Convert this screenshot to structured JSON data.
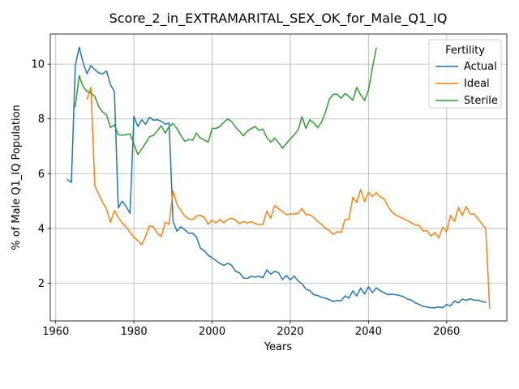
{
  "chart_data": {
    "type": "line",
    "title": "Score_2_in_EXTRAMARITAL_SEX_OK_for_Male_Q1_IQ",
    "xlabel": "Years",
    "ylabel": "% of Male Q1_IQ Population",
    "xlim": [
      1958.6,
      2075.4
    ],
    "ylim": [
      0.62,
      11.1
    ],
    "xticks": [
      1960,
      1980,
      2000,
      2020,
      2040,
      2060
    ],
    "yticks": [
      2,
      4,
      6,
      8,
      10
    ],
    "grid": true,
    "legend": {
      "title": "Fertility",
      "placement": "top-right"
    },
    "series": [
      {
        "name": "Actual",
        "color": "#1f77b4",
        "points": [
          [
            1963,
            5.78
          ],
          [
            1964,
            5.68
          ],
          [
            1965,
            9.95
          ],
          [
            1966,
            10.62
          ],
          [
            1967,
            10.05
          ],
          [
            1968,
            9.65
          ],
          [
            1969,
            9.95
          ],
          [
            1970,
            9.8
          ],
          [
            1971,
            9.68
          ],
          [
            1972,
            9.65
          ],
          [
            1973,
            9.75
          ],
          [
            1974,
            9.25
          ],
          [
            1975,
            9.0
          ],
          [
            1976,
            4.75
          ],
          [
            1977,
            5.0
          ],
          [
            1978,
            4.8
          ],
          [
            1979,
            4.55
          ],
          [
            1980,
            8.1
          ],
          [
            1981,
            7.72
          ],
          [
            1982,
            7.97
          ],
          [
            1983,
            7.8
          ],
          [
            1984,
            8.06
          ],
          [
            1985,
            7.95
          ],
          [
            1986,
            7.97
          ],
          [
            1987,
            7.92
          ],
          [
            1988,
            7.8
          ],
          [
            1989,
            7.85
          ],
          [
            1990,
            4.27
          ],
          [
            1991,
            3.9
          ],
          [
            1992,
            4.06
          ],
          [
            1993,
            3.95
          ],
          [
            1994,
            3.82
          ],
          [
            1995,
            3.83
          ],
          [
            1996,
            3.68
          ],
          [
            1997,
            3.28
          ],
          [
            1998,
            3.18
          ],
          [
            1999,
            3.02
          ],
          [
            2000,
            2.93
          ],
          [
            2001,
            2.82
          ],
          [
            2002,
            2.72
          ],
          [
            2003,
            2.65
          ],
          [
            2004,
            2.73
          ],
          [
            2005,
            2.65
          ],
          [
            2006,
            2.43
          ],
          [
            2007,
            2.38
          ],
          [
            2008,
            2.19
          ],
          [
            2009,
            2.17
          ],
          [
            2010,
            2.25
          ],
          [
            2011,
            2.22
          ],
          [
            2012,
            2.25
          ],
          [
            2013,
            2.2
          ],
          [
            2014,
            2.48
          ],
          [
            2015,
            2.33
          ],
          [
            2016,
            2.43
          ],
          [
            2017,
            2.38
          ],
          [
            2018,
            2.13
          ],
          [
            2019,
            2.28
          ],
          [
            2020,
            2.12
          ],
          [
            2021,
            2.26
          ],
          [
            2022,
            2.08
          ],
          [
            2023,
            1.98
          ],
          [
            2024,
            1.78
          ],
          [
            2025,
            1.73
          ],
          [
            2026,
            1.58
          ],
          [
            2027,
            1.55
          ],
          [
            2028,
            1.48
          ],
          [
            2029,
            1.45
          ],
          [
            2030,
            1.4
          ],
          [
            2031,
            1.33
          ],
          [
            2032,
            1.37
          ],
          [
            2033,
            1.35
          ],
          [
            2034,
            1.53
          ],
          [
            2035,
            1.45
          ],
          [
            2036,
            1.72
          ],
          [
            2037,
            1.53
          ],
          [
            2038,
            1.82
          ],
          [
            2039,
            1.6
          ],
          [
            2040,
            1.87
          ],
          [
            2041,
            1.65
          ],
          [
            2042,
            1.83
          ],
          [
            2043,
            1.72
          ],
          [
            2044,
            1.65
          ],
          [
            2045,
            1.58
          ],
          [
            2046,
            1.6
          ],
          [
            2047,
            1.58
          ],
          [
            2048,
            1.55
          ],
          [
            2049,
            1.5
          ],
          [
            2050,
            1.42
          ],
          [
            2051,
            1.38
          ],
          [
            2052,
            1.28
          ],
          [
            2053,
            1.22
          ],
          [
            2054,
            1.15
          ],
          [
            2055,
            1.13
          ],
          [
            2056,
            1.1
          ],
          [
            2057,
            1.1
          ],
          [
            2058,
            1.13
          ],
          [
            2059,
            1.1
          ],
          [
            2060,
            1.22
          ],
          [
            2061,
            1.17
          ],
          [
            2062,
            1.35
          ],
          [
            2063,
            1.28
          ],
          [
            2064,
            1.42
          ],
          [
            2065,
            1.37
          ],
          [
            2066,
            1.43
          ],
          [
            2067,
            1.38
          ],
          [
            2068,
            1.38
          ],
          [
            2069,
            1.33
          ],
          [
            2070,
            1.3
          ]
        ]
      },
      {
        "name": "Ideal",
        "color": "#ff7f0e",
        "points": [
          [
            1968,
            8.72
          ],
          [
            1969,
            9.15
          ],
          [
            1970,
            5.55
          ],
          [
            1971,
            5.25
          ],
          [
            1972,
            4.95
          ],
          [
            1973,
            4.7
          ],
          [
            1974,
            4.22
          ],
          [
            1975,
            4.65
          ],
          [
            1976,
            4.4
          ],
          [
            1977,
            4.2
          ],
          [
            1978,
            4.05
          ],
          [
            1979,
            3.85
          ],
          [
            1980,
            3.68
          ],
          [
            1981,
            3.55
          ],
          [
            1982,
            3.4
          ],
          [
            1983,
            3.72
          ],
          [
            1984,
            4.1
          ],
          [
            1985,
            4.05
          ],
          [
            1986,
            3.82
          ],
          [
            1987,
            3.7
          ],
          [
            1988,
            4.22
          ],
          [
            1989,
            4.15
          ],
          [
            1990,
            5.37
          ],
          [
            1991,
            4.88
          ],
          [
            1992,
            4.65
          ],
          [
            1993,
            4.45
          ],
          [
            1994,
            4.35
          ],
          [
            1995,
            4.32
          ],
          [
            1996,
            4.45
          ],
          [
            1997,
            4.48
          ],
          [
            1998,
            4.4
          ],
          [
            1999,
            4.15
          ],
          [
            2000,
            4.3
          ],
          [
            2001,
            4.2
          ],
          [
            2002,
            4.33
          ],
          [
            2003,
            4.2
          ],
          [
            2004,
            4.33
          ],
          [
            2005,
            4.37
          ],
          [
            2006,
            4.3
          ],
          [
            2007,
            4.17
          ],
          [
            2008,
            4.25
          ],
          [
            2009,
            4.2
          ],
          [
            2010,
            4.25
          ],
          [
            2011,
            4.18
          ],
          [
            2012,
            4.13
          ],
          [
            2013,
            4.15
          ],
          [
            2014,
            4.63
          ],
          [
            2015,
            4.37
          ],
          [
            2016,
            4.83
          ],
          [
            2017,
            4.72
          ],
          [
            2018,
            4.62
          ],
          [
            2019,
            4.5
          ],
          [
            2020,
            4.53
          ],
          [
            2021,
            4.52
          ],
          [
            2022,
            4.55
          ],
          [
            2023,
            4.73
          ],
          [
            2024,
            4.5
          ],
          [
            2025,
            4.5
          ],
          [
            2026,
            4.4
          ],
          [
            2027,
            4.25
          ],
          [
            2028,
            4.15
          ],
          [
            2029,
            4.0
          ],
          [
            2030,
            3.92
          ],
          [
            2031,
            3.78
          ],
          [
            2032,
            3.88
          ],
          [
            2033,
            3.85
          ],
          [
            2034,
            4.32
          ],
          [
            2035,
            4.33
          ],
          [
            2036,
            5.13
          ],
          [
            2037,
            4.95
          ],
          [
            2038,
            5.42
          ],
          [
            2039,
            4.98
          ],
          [
            2040,
            5.32
          ],
          [
            2041,
            5.17
          ],
          [
            2042,
            5.3
          ],
          [
            2043,
            5.15
          ],
          [
            2044,
            5.08
          ],
          [
            2045,
            4.8
          ],
          [
            2046,
            4.6
          ],
          [
            2047,
            4.48
          ],
          [
            2048,
            4.42
          ],
          [
            2049,
            4.35
          ],
          [
            2050,
            4.28
          ],
          [
            2051,
            4.2
          ],
          [
            2052,
            4.12
          ],
          [
            2053,
            4.1
          ],
          [
            2054,
            3.9
          ],
          [
            2055,
            3.92
          ],
          [
            2056,
            3.72
          ],
          [
            2057,
            3.85
          ],
          [
            2058,
            3.65
          ],
          [
            2059,
            4.05
          ],
          [
            2060,
            3.88
          ],
          [
            2061,
            4.48
          ],
          [
            2062,
            4.25
          ],
          [
            2063,
            4.77
          ],
          [
            2064,
            4.47
          ],
          [
            2065,
            4.8
          ],
          [
            2066,
            4.52
          ],
          [
            2067,
            4.53
          ],
          [
            2068,
            4.35
          ],
          [
            2069,
            4.17
          ],
          [
            2070,
            4.0
          ],
          [
            2071,
            1.08
          ]
        ]
      },
      {
        "name": "Sterile",
        "color": "#2ca02c",
        "points": [
          [
            1965,
            8.45
          ],
          [
            1966,
            9.58
          ],
          [
            1967,
            9.18
          ],
          [
            1968,
            9.0
          ],
          [
            1969,
            8.95
          ],
          [
            1970,
            8.82
          ],
          [
            1971,
            8.45
          ],
          [
            1972,
            8.25
          ],
          [
            1973,
            8.15
          ],
          [
            1974,
            7.68
          ],
          [
            1975,
            7.78
          ],
          [
            1976,
            7.42
          ],
          [
            1977,
            7.4
          ],
          [
            1978,
            7.43
          ],
          [
            1979,
            7.45
          ],
          [
            1980,
            7.08
          ],
          [
            1981,
            6.7
          ],
          [
            1982,
            6.9
          ],
          [
            1983,
            7.12
          ],
          [
            1984,
            7.35
          ],
          [
            1985,
            7.4
          ],
          [
            1986,
            7.57
          ],
          [
            1987,
            7.75
          ],
          [
            1988,
            7.48
          ],
          [
            1989,
            7.72
          ],
          [
            1990,
            7.83
          ],
          [
            1991,
            7.65
          ],
          [
            1992,
            7.4
          ],
          [
            1993,
            7.18
          ],
          [
            1994,
            7.25
          ],
          [
            1995,
            7.22
          ],
          [
            1996,
            7.48
          ],
          [
            1997,
            7.3
          ],
          [
            1998,
            7.23
          ],
          [
            1999,
            7.15
          ],
          [
            2000,
            7.65
          ],
          [
            2001,
            7.65
          ],
          [
            2002,
            7.72
          ],
          [
            2003,
            7.88
          ],
          [
            2004,
            8.0
          ],
          [
            2005,
            7.9
          ],
          [
            2006,
            7.7
          ],
          [
            2007,
            7.55
          ],
          [
            2008,
            7.38
          ],
          [
            2009,
            7.55
          ],
          [
            2010,
            7.65
          ],
          [
            2011,
            7.72
          ],
          [
            2012,
            7.58
          ],
          [
            2013,
            7.63
          ],
          [
            2014,
            7.32
          ],
          [
            2015,
            7.15
          ],
          [
            2016,
            7.3
          ],
          [
            2017,
            7.13
          ],
          [
            2018,
            6.93
          ],
          [
            2019,
            7.1
          ],
          [
            2020,
            7.27
          ],
          [
            2021,
            7.42
          ],
          [
            2022,
            7.6
          ],
          [
            2023,
            8.08
          ],
          [
            2024,
            7.65
          ],
          [
            2025,
            7.97
          ],
          [
            2026,
            7.85
          ],
          [
            2027,
            7.68
          ],
          [
            2028,
            7.88
          ],
          [
            2029,
            8.25
          ],
          [
            2030,
            8.72
          ],
          [
            2031,
            8.9
          ],
          [
            2032,
            8.9
          ],
          [
            2033,
            8.75
          ],
          [
            2034,
            8.93
          ],
          [
            2035,
            8.82
          ],
          [
            2036,
            8.68
          ],
          [
            2037,
            9.15
          ],
          [
            2038,
            8.88
          ],
          [
            2039,
            8.67
          ],
          [
            2040,
            9.05
          ],
          [
            2041,
            9.85
          ],
          [
            2042,
            10.58
          ]
        ]
      }
    ]
  }
}
